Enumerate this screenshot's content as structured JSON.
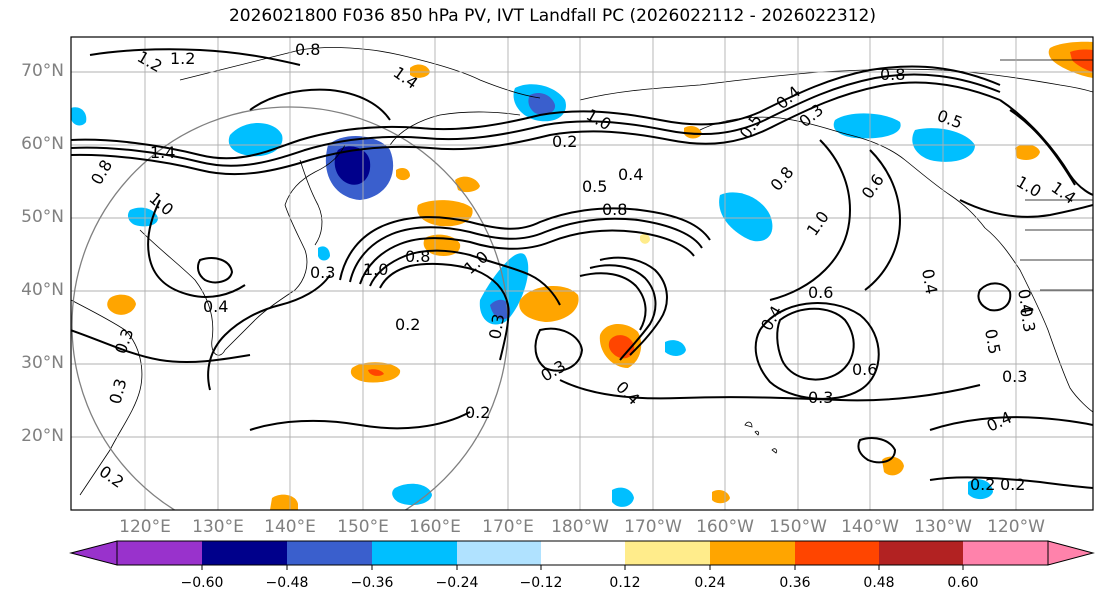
{
  "title": "2026021800 F036 850 hPa PV, IVT Landfall PC (2026022112 - 2026022312)",
  "lat_labels": [
    "70°N",
    "60°N",
    "50°N",
    "40°N",
    "30°N",
    "20°N"
  ],
  "lon_labels": [
    "120°E",
    "130°E",
    "140°E",
    "150°E",
    "160°E",
    "170°E",
    "180°W",
    "170°W",
    "160°W",
    "150°W",
    "140°W",
    "130°W",
    "120°W"
  ],
  "contour_labels": [
    "1.2",
    "1.2",
    "0.8",
    "1.4",
    "1.4",
    "1.0",
    "0.5",
    "0.4",
    "0.2",
    "0.8",
    "1.0",
    "0.3",
    "0.4",
    "0.2",
    "0.3",
    "0.8",
    "1.0",
    "0.4",
    "0.2",
    "0.3",
    "0.4",
    "0.6",
    "0.4",
    "0.6",
    "0.3",
    "0.2",
    "0.3",
    "1.0",
    "0.6",
    "0.8",
    "0.5",
    "0.4",
    "0.3",
    "1.0",
    "1.4",
    "0.4",
    "0.2",
    "0.4",
    "0.3",
    "0.5",
    "0.8",
    "0.5",
    "0.8",
    "1.0",
    "0.2",
    "0.3",
    "0.3"
  ],
  "colorbar": {
    "ticks": [
      "−0.60",
      "−0.48",
      "−0.36",
      "−0.24",
      "−0.12",
      "0.12",
      "0.24",
      "0.36",
      "0.48",
      "0.60"
    ],
    "colors": [
      "#9932CC",
      "#00008B",
      "#3A5FCD",
      "#00BFFF",
      "#B0E2FF",
      "#FFFFFF",
      "#FFEC8B",
      "#FFA500",
      "#FF4500",
      "#B22222",
      "#FF82AB"
    ]
  }
}
